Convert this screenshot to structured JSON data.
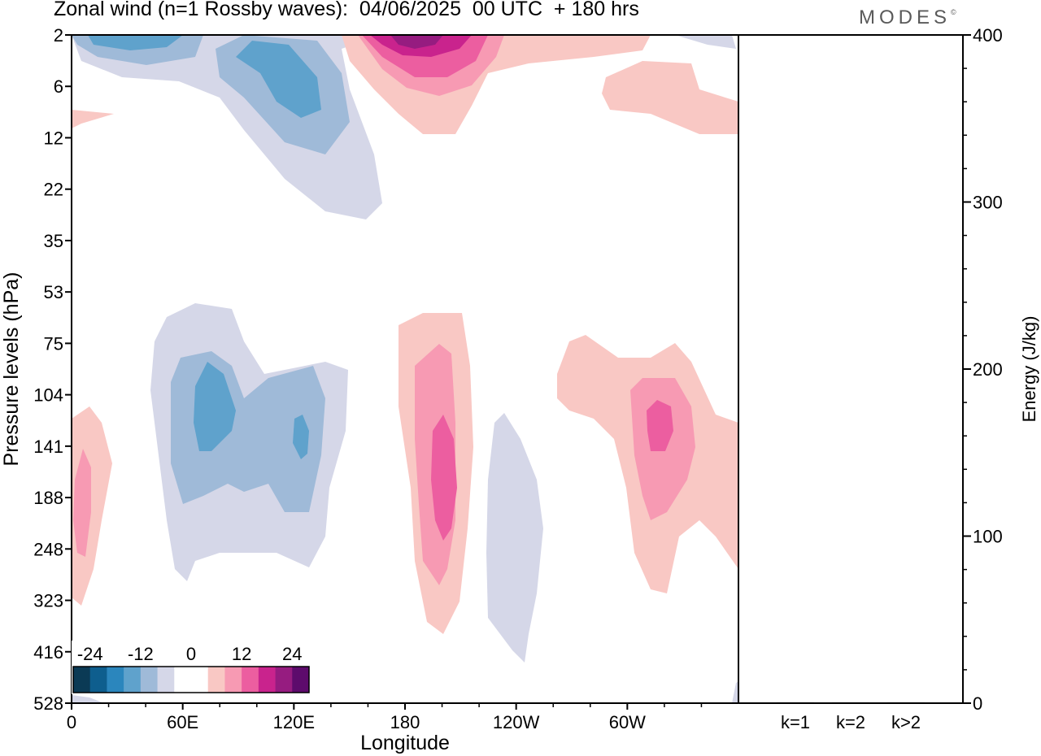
{
  "title": "Zonal wind (n=1 Rossby waves):  04/06/2025  00 UTC  + 180 hrs",
  "logo": "MODES",
  "logo_mark": "©",
  "colors": {
    "neg": [
      "#0b3a55",
      "#0e5e8e",
      "#2b86bd",
      "#5fa2cc",
      "#9fbad8",
      "#d5d7e8"
    ],
    "pos": [
      "#f9c8c4",
      "#f79ab3",
      "#ec5ea0",
      "#c9238d",
      "#961c80",
      "#5d0b6c"
    ]
  },
  "chart_data": [
    {
      "type": "heatmap",
      "title": "Zonal wind (n=1 Rossby waves):  04/06/2025  00 UTC  + 180 hrs",
      "xlabel": "Longitude",
      "ylabel": "Pressure levels (hPa)",
      "x_ticks": [
        "0",
        "60E",
        "120E",
        "180",
        "120W",
        "60W"
      ],
      "x_tick_lon": [
        0,
        60,
        120,
        180,
        240,
        300
      ],
      "xlim": [
        0,
        360
      ],
      "y_ticks": [
        "2",
        "6",
        "12",
        "22",
        "35",
        "53",
        "75",
        "104",
        "141",
        "188",
        "248",
        "323",
        "416",
        "528"
      ],
      "colorbar_labels": [
        "-24",
        "-12",
        "0",
        "12",
        "24"
      ],
      "colorbar_levels": [
        -24,
        -20,
        -16,
        -12,
        -8,
        -4,
        0,
        4,
        8,
        12,
        16,
        20,
        24
      ],
      "features": [
        {
          "lon": 30,
          "level": "2",
          "value": -14
        },
        {
          "lon": 110,
          "level": "6",
          "value": -12
        },
        {
          "lon": 180,
          "level": "2",
          "value": 22
        },
        {
          "lon": 330,
          "level": "6",
          "value": 4
        },
        {
          "lon": 5,
          "level": "188",
          "value": 8
        },
        {
          "lon": 75,
          "level": "104",
          "value": -12
        },
        {
          "lon": 125,
          "level": "141",
          "value": -12
        },
        {
          "lon": 200,
          "level": "141",
          "value": 12
        },
        {
          "lon": 235,
          "level": "248",
          "value": -4
        },
        {
          "lon": 320,
          "level": "104",
          "value": 12
        }
      ]
    },
    {
      "type": "bar",
      "ylabel": "Energy (J/kg)",
      "categories": [
        "k=1",
        "k=2",
        "k>2"
      ],
      "values": [
        0.5,
        0.5,
        0.5
      ],
      "ylim": [
        0,
        400
      ],
      "y_ticks": [
        "0",
        "100",
        "200",
        "300",
        "400"
      ]
    }
  ]
}
